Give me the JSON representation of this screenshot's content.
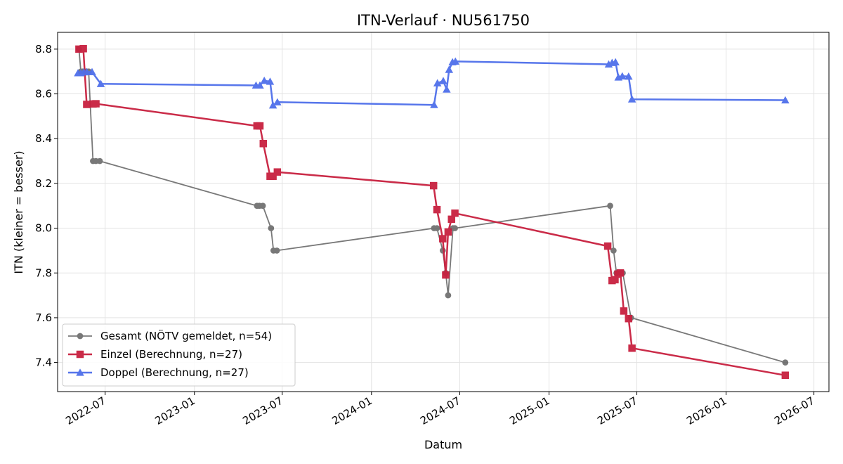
{
  "chart_data": {
    "type": "line",
    "title": "ITN-Verlauf · NU561750",
    "xlabel": "Datum",
    "ylabel": "ITN  (kleiner = besser)",
    "x_type": "date",
    "xlim": [
      "2022-03-25",
      "2026-08-01"
    ],
    "ylim": [
      7.27,
      8.875
    ],
    "x_ticks": [
      "2022-07-01",
      "2023-01-01",
      "2023-07-01",
      "2024-01-01",
      "2024-07-01",
      "2025-01-01",
      "2025-07-01",
      "2026-01-01",
      "2026-07-01"
    ],
    "x_tick_labels": [
      "2022-07",
      "2023-01",
      "2023-07",
      "2024-01",
      "2024-07",
      "2025-01",
      "2025-07",
      "2026-01",
      "2026-07"
    ],
    "y_ticks": [
      7.4,
      7.6,
      7.8,
      8.0,
      8.2,
      8.4,
      8.6,
      8.8
    ],
    "y_tick_labels": [
      "7.4",
      "7.6",
      "7.8",
      "8.0",
      "8.2",
      "8.4",
      "8.6",
      "8.8"
    ],
    "grid": true,
    "legend_position": "bottom-left",
    "series": [
      {
        "name": "Gesamt (NÖTV gemeldet, n=54)",
        "color": "#404040",
        "marker": "circle",
        "points": [
          [
            "2022-05-08",
            8.8
          ],
          [
            "2022-05-12",
            8.7
          ],
          [
            "2022-05-16",
            8.7
          ],
          [
            "2022-05-20",
            8.7
          ],
          [
            "2022-05-24",
            8.7
          ],
          [
            "2022-05-28",
            8.7
          ],
          [
            "2022-06-06",
            8.3
          ],
          [
            "2022-06-12",
            8.3
          ],
          [
            "2022-06-20",
            8.3
          ],
          [
            "2023-05-10",
            8.1
          ],
          [
            "2023-05-15",
            8.1
          ],
          [
            "2023-05-22",
            8.1
          ],
          [
            "2023-06-08",
            8.0
          ],
          [
            "2023-06-13",
            7.9
          ],
          [
            "2023-06-20",
            7.9
          ],
          [
            "2024-05-09",
            8.0
          ],
          [
            "2024-05-15",
            8.0
          ],
          [
            "2024-05-27",
            7.9
          ],
          [
            "2024-06-02",
            7.8
          ],
          [
            "2024-06-07",
            7.7
          ],
          [
            "2024-06-17",
            8.0
          ],
          [
            "2024-06-21",
            8.0
          ],
          [
            "2025-05-07",
            8.1
          ],
          [
            "2025-05-14",
            7.9
          ],
          [
            "2025-05-20",
            7.8
          ],
          [
            "2025-05-29",
            7.8
          ],
          [
            "2025-06-02",
            7.8
          ],
          [
            "2025-06-19",
            7.6
          ],
          [
            "2026-05-03",
            7.4
          ]
        ]
      },
      {
        "name": "Einzel (Berechnung, n=27)",
        "color": "#c8203f",
        "marker": "square",
        "points": [
          [
            "2022-05-08",
            8.8
          ],
          [
            "2022-05-17",
            8.802
          ],
          [
            "2022-05-24",
            8.553
          ],
          [
            "2022-06-06",
            8.555
          ],
          [
            "2022-06-12",
            8.556
          ],
          [
            "2023-05-10",
            8.457
          ],
          [
            "2023-05-16",
            8.457
          ],
          [
            "2023-05-23",
            8.378
          ],
          [
            "2023-06-06",
            8.232
          ],
          [
            "2023-06-12",
            8.232
          ],
          [
            "2023-06-21",
            8.251
          ],
          [
            "2024-05-08",
            8.19
          ],
          [
            "2024-05-15",
            8.083
          ],
          [
            "2024-05-27",
            7.953
          ],
          [
            "2024-06-02",
            7.791
          ],
          [
            "2024-06-07",
            7.983
          ],
          [
            "2024-06-14",
            8.04
          ],
          [
            "2024-06-21",
            8.067
          ],
          [
            "2025-05-02",
            7.92
          ],
          [
            "2025-05-11",
            7.766
          ],
          [
            "2025-05-17",
            7.77
          ],
          [
            "2025-05-23",
            7.795
          ],
          [
            "2025-05-28",
            7.8
          ],
          [
            "2025-06-04",
            7.63
          ],
          [
            "2025-06-14",
            7.596
          ],
          [
            "2025-06-21",
            7.464
          ],
          [
            "2026-05-03",
            7.343
          ]
        ]
      },
      {
        "name": "Doppel (Berechnung, n=27)",
        "color": "#4f6fea",
        "marker": "triangle",
        "points": [
          [
            "2022-05-06",
            8.693
          ],
          [
            "2022-05-12",
            8.693
          ],
          [
            "2022-05-18",
            8.697
          ],
          [
            "2022-05-24",
            8.698
          ],
          [
            "2022-06-04",
            8.698
          ],
          [
            "2022-06-22",
            8.645
          ],
          [
            "2023-05-08",
            8.638
          ],
          [
            "2023-05-16",
            8.638
          ],
          [
            "2023-05-25",
            8.659
          ],
          [
            "2023-06-06",
            8.655
          ],
          [
            "2023-06-12",
            8.549
          ],
          [
            "2023-06-21",
            8.563
          ],
          [
            "2024-05-09",
            8.551
          ],
          [
            "2024-05-16",
            8.648
          ],
          [
            "2024-05-28",
            8.658
          ],
          [
            "2024-06-04",
            8.62
          ],
          [
            "2024-06-09",
            8.708
          ],
          [
            "2024-06-16",
            8.742
          ],
          [
            "2024-06-22",
            8.745
          ],
          [
            "2025-05-04",
            8.732
          ],
          [
            "2025-05-11",
            8.739
          ],
          [
            "2025-05-18",
            8.742
          ],
          [
            "2025-05-24",
            8.674
          ],
          [
            "2025-06-01",
            8.679
          ],
          [
            "2025-06-14",
            8.678
          ],
          [
            "2025-06-21",
            8.576
          ],
          [
            "2026-05-03",
            8.572
          ]
        ]
      }
    ]
  }
}
